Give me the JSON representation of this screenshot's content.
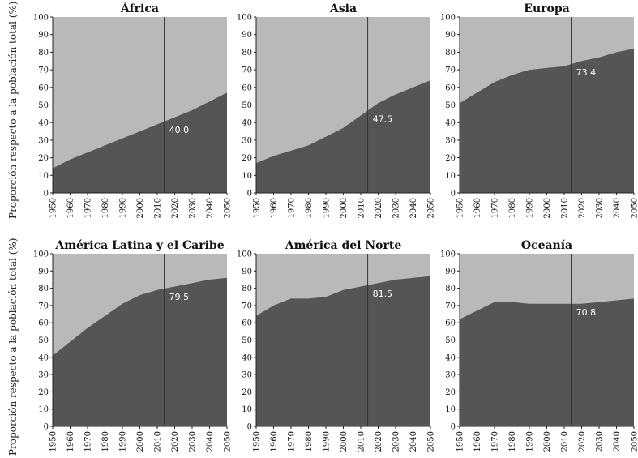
{
  "colors": {
    "urban": "#555555",
    "rural": "#b9b9b9",
    "axis": "#222222"
  },
  "ylabel": "Proporción respecto a la población total (%)",
  "chart_data": [
    {
      "type": "area",
      "title": "África",
      "x": [
        1950,
        1960,
        1970,
        1980,
        1990,
        2000,
        2010,
        2020,
        2030,
        2040,
        2050
      ],
      "series": [
        {
          "values": [
            14,
            19,
            23,
            27,
            31,
            35,
            39,
            43,
            47,
            52,
            57
          ]
        }
      ],
      "ylim": [
        0,
        100
      ],
      "xlim": [
        1950,
        2050
      ],
      "marker_year": 2014,
      "marker_label": "40.0",
      "yticks": [
        0,
        10,
        20,
        30,
        40,
        50,
        60,
        70,
        80,
        90,
        100
      ],
      "xticks": [
        1950,
        1960,
        1970,
        1980,
        1990,
        2000,
        2010,
        2020,
        2030,
        2040,
        2050
      ],
      "reference_line": 50
    },
    {
      "type": "area",
      "title": "Asia",
      "x": [
        1950,
        1960,
        1970,
        1980,
        1990,
        2000,
        2010,
        2020,
        2030,
        2040,
        2050
      ],
      "series": [
        {
          "values": [
            17,
            21,
            24,
            27,
            32,
            37,
            44,
            51,
            56,
            60,
            64
          ]
        }
      ],
      "ylim": [
        0,
        100
      ],
      "xlim": [
        1950,
        2050
      ],
      "marker_year": 2014,
      "marker_label": "47.5",
      "yticks": [
        0,
        10,
        20,
        30,
        40,
        50,
        60,
        70,
        80,
        90,
        100
      ],
      "xticks": [
        1950,
        1960,
        1970,
        1980,
        1990,
        2000,
        2010,
        2020,
        2030,
        2040,
        2050
      ],
      "reference_line": 50
    },
    {
      "type": "area",
      "title": "Europa",
      "x": [
        1950,
        1960,
        1970,
        1980,
        1990,
        2000,
        2010,
        2020,
        2030,
        2040,
        2050
      ],
      "series": [
        {
          "values": [
            51,
            57,
            63,
            67,
            70,
            71,
            72,
            75,
            77,
            80,
            82
          ]
        }
      ],
      "ylim": [
        0,
        100
      ],
      "xlim": [
        1950,
        2050
      ],
      "marker_year": 2014,
      "marker_label": "73.4",
      "yticks": [
        0,
        10,
        20,
        30,
        40,
        50,
        60,
        70,
        80,
        90,
        100
      ],
      "xticks": [
        1950,
        1960,
        1970,
        1980,
        1990,
        2000,
        2010,
        2020,
        2030,
        2040,
        2050
      ],
      "reference_line": 50
    },
    {
      "type": "area",
      "title": "América Latina y el Caribe",
      "x": [
        1950,
        1960,
        1970,
        1980,
        1990,
        2000,
        2010,
        2020,
        2030,
        2040,
        2050
      ],
      "series": [
        {
          "values": [
            41,
            49,
            57,
            64,
            71,
            76,
            79,
            81,
            83,
            85,
            86
          ]
        }
      ],
      "ylim": [
        0,
        100
      ],
      "xlim": [
        1950,
        2050
      ],
      "marker_year": 2014,
      "marker_label": "79.5",
      "yticks": [
        0,
        10,
        20,
        30,
        40,
        50,
        60,
        70,
        80,
        90,
        100
      ],
      "xticks": [
        1950,
        1960,
        1970,
        1980,
        1990,
        2000,
        2010,
        2020,
        2030,
        2040,
        2050
      ],
      "reference_line": 50
    },
    {
      "type": "area",
      "title": "América del Norte",
      "x": [
        1950,
        1960,
        1970,
        1980,
        1990,
        2000,
        2010,
        2020,
        2030,
        2040,
        2050
      ],
      "series": [
        {
          "values": [
            64,
            70,
            74,
            74,
            75,
            79,
            81,
            83,
            85,
            86,
            87
          ]
        }
      ],
      "ylim": [
        0,
        100
      ],
      "xlim": [
        1950,
        2050
      ],
      "marker_year": 2014,
      "marker_label": "81.5",
      "yticks": [
        0,
        10,
        20,
        30,
        40,
        50,
        60,
        70,
        80,
        90,
        100
      ],
      "xticks": [
        1950,
        1960,
        1970,
        1980,
        1990,
        2000,
        2010,
        2020,
        2030,
        2040,
        2050
      ],
      "reference_line": 50
    },
    {
      "type": "area",
      "title": "Oceanía",
      "x": [
        1950,
        1960,
        1970,
        1980,
        1990,
        2000,
        2010,
        2020,
        2030,
        2040,
        2050
      ],
      "series": [
        {
          "values": [
            62,
            67,
            72,
            72,
            71,
            71,
            71,
            71,
            72,
            73,
            74
          ]
        }
      ],
      "ylim": [
        0,
        100
      ],
      "xlim": [
        1950,
        2050
      ],
      "marker_year": 2014,
      "marker_label": "70.8",
      "yticks": [
        0,
        10,
        20,
        30,
        40,
        50,
        60,
        70,
        80,
        90,
        100
      ],
      "xticks": [
        1950,
        1960,
        1970,
        1980,
        1990,
        2000,
        2010,
        2020,
        2030,
        2040,
        2050
      ],
      "reference_line": 50
    }
  ]
}
